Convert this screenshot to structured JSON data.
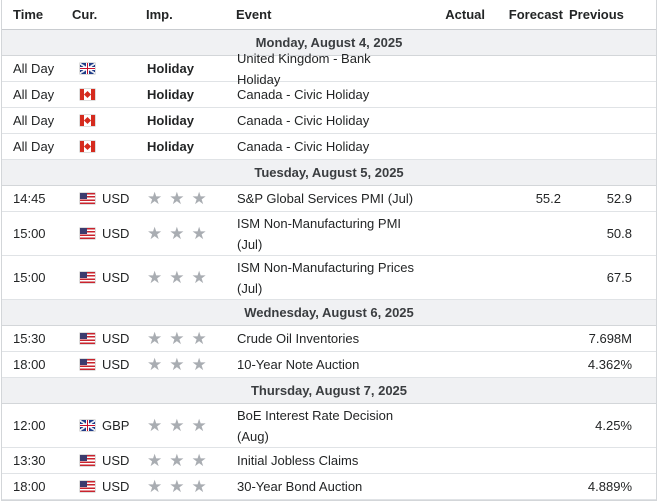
{
  "columns": {
    "time": "Time",
    "currency": "Cur.",
    "importance": "Imp.",
    "event": "Event",
    "actual": "Actual",
    "forecast": "Forecast",
    "previous": "Previous"
  },
  "star_glyph": "★",
  "days": [
    {
      "date": "Monday, August 4, 2025",
      "events": [
        {
          "time": "All Day",
          "flag": "gb",
          "currency": "",
          "importance": "Holiday",
          "event": "United Kingdom - Bank Holiday",
          "actual": "",
          "forecast": "",
          "previous": ""
        },
        {
          "time": "All Day",
          "flag": "ca",
          "currency": "",
          "importance": "Holiday",
          "event": "Canada - Civic Holiday",
          "actual": "",
          "forecast": "",
          "previous": ""
        },
        {
          "time": "All Day",
          "flag": "ca",
          "currency": "",
          "importance": "Holiday",
          "event": "Canada - Civic Holiday",
          "actual": "",
          "forecast": "",
          "previous": ""
        },
        {
          "time": "All Day",
          "flag": "ca",
          "currency": "",
          "importance": "Holiday",
          "event": "Canada - Civic Holiday",
          "actual": "",
          "forecast": "",
          "previous": ""
        }
      ]
    },
    {
      "date": "Tuesday, August 5, 2025",
      "events": [
        {
          "time": "14:45",
          "flag": "us",
          "currency": "USD",
          "importance": "",
          "event": "S&P Global Services PMI (Jul)",
          "actual": "",
          "forecast": "55.2",
          "previous": "52.9"
        },
        {
          "time": "15:00",
          "flag": "us",
          "currency": "USD",
          "importance": "",
          "event": "ISM Non-Manufacturing PMI (Jul)",
          "actual": "",
          "forecast": "",
          "previous": "50.8"
        },
        {
          "time": "15:00",
          "flag": "us",
          "currency": "USD",
          "importance": "",
          "event": "ISM Non-Manufacturing Prices (Jul)",
          "actual": "",
          "forecast": "",
          "previous": "67.5"
        }
      ]
    },
    {
      "date": "Wednesday, August 6, 2025",
      "events": [
        {
          "time": "15:30",
          "flag": "us",
          "currency": "USD",
          "importance": "",
          "event": "Crude Oil Inventories",
          "actual": "",
          "forecast": "",
          "previous": "7.698M"
        },
        {
          "time": "18:00",
          "flag": "us",
          "currency": "USD",
          "importance": "",
          "event": "10-Year Note Auction",
          "actual": "",
          "forecast": "",
          "previous": "4.362%"
        }
      ]
    },
    {
      "date": "Thursday, August 7, 2025",
      "events": [
        {
          "time": "12:00",
          "flag": "gb",
          "currency": "GBP",
          "importance": "",
          "event": "BoE Interest Rate Decision (Aug)",
          "actual": "",
          "forecast": "",
          "previous": "4.25%"
        },
        {
          "time": "13:30",
          "flag": "us",
          "currency": "USD",
          "importance": "",
          "event": "Initial Jobless Claims",
          "actual": "",
          "forecast": "",
          "previous": ""
        },
        {
          "time": "18:00",
          "flag": "us",
          "currency": "USD",
          "importance": "",
          "event": "30-Year Bond Auction",
          "actual": "",
          "forecast": "",
          "previous": "4.889%"
        }
      ]
    }
  ]
}
